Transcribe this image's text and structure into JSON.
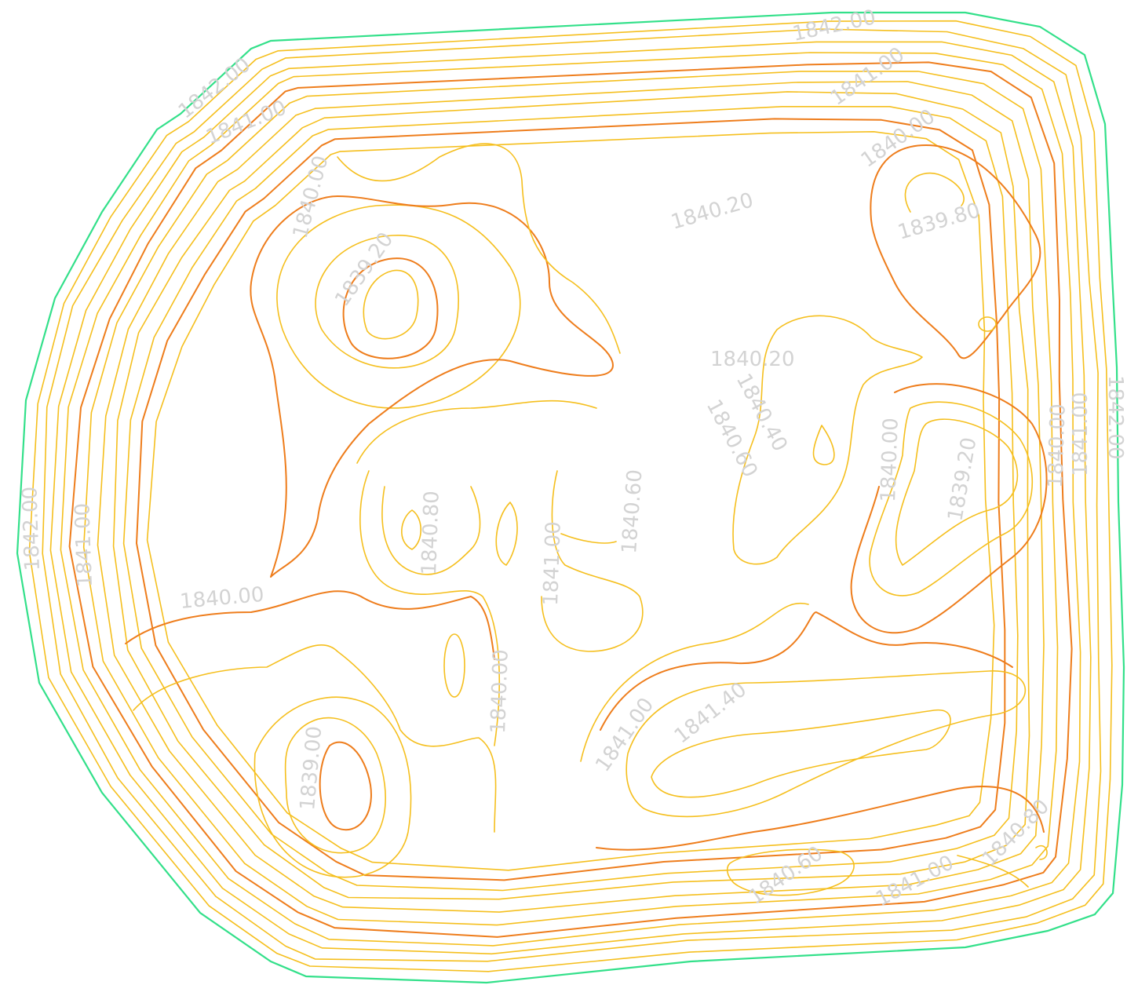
{
  "colors": {
    "boundary": "#33e08a",
    "minor_contour": "#f5bf1e",
    "major_contour": "#ee7d1c",
    "label": "#d3d3d3",
    "background": "#ffffff"
  },
  "contour_labels": {
    "l01": "1842.00",
    "l02": "1842.00",
    "l03": "1841.00",
    "l04": "1841.00",
    "l05": "1840.00",
    "l06": "1840.00",
    "l07": "1840.20",
    "l08": "1839.80",
    "l09": "1839.20",
    "l10": "1840.20",
    "l11": "1840.60",
    "l12": "1840.40",
    "l13": "1840.00",
    "l14": "1839.20",
    "l15": "1840.00",
    "l16": "1841.00",
    "l17": "1842.00",
    "l18": "1842.00",
    "l19": "1841.00",
    "l20": "1840.00",
    "l21": "1840.80",
    "l22": "1841.00",
    "l23": "1840.60",
    "l24": "1840.00",
    "l25": "1839.00",
    "l26": "1841.00",
    "l27": "1841.40",
    "l28": "1840.60",
    "l29": "1841.00",
    "l30": "1840.80"
  }
}
